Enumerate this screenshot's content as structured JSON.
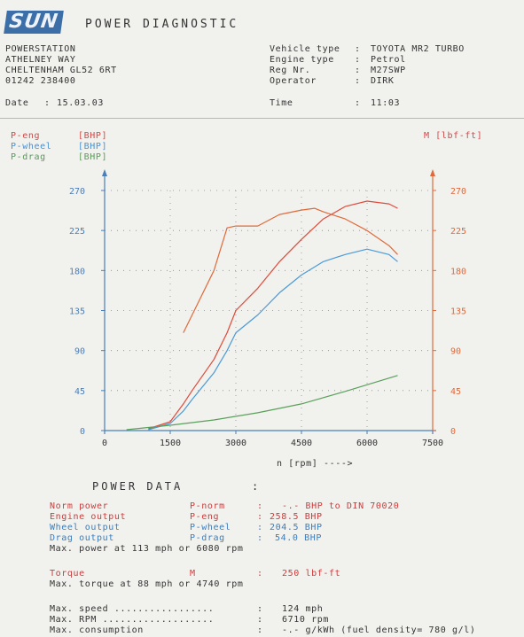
{
  "header": {
    "logo_text": "SUN",
    "title": "POWER DIAGNOSTIC"
  },
  "company": {
    "name": "POWERSTATION",
    "street": "ATHELNEY WAY",
    "city": "CHELTENHAM GL52 6RT",
    "phone": "01242 238400"
  },
  "vehicle": {
    "type_label": "Vehicle type",
    "type_value": "TOYOTA MR2 TURBO",
    "engine_label": "Engine type",
    "engine_value": "Petrol",
    "reg_label": "Reg Nr.",
    "reg_value": "M27SWP",
    "operator_label": "Operator",
    "operator_value": "DIRK"
  },
  "datetime": {
    "date_label": "Date",
    "date_value": "15.03.03",
    "time_label": "Time",
    "time_value": "11:03"
  },
  "legend": {
    "p_eng": "P-eng",
    "p_wheel": "P-wheel",
    "p_drag": "P-drag",
    "unit": "[BHP]",
    "torque": "M [lbf-ft]"
  },
  "chart_data": {
    "type": "line",
    "xlabel": "n [rpm] ---->",
    "xlim": [
      0,
      7500
    ],
    "x_ticks": [
      "0",
      "1500",
      "3000",
      "4500",
      "6000",
      "7500"
    ],
    "ylim_left": [
      0,
      270
    ],
    "ylim_right": [
      0,
      270
    ],
    "y_ticks": [
      "0",
      "45",
      "90",
      "135",
      "180",
      "225",
      "270"
    ],
    "grid": true,
    "colors": {
      "p_eng": "#e04a3a",
      "p_wheel": "#4a9ad8",
      "p_drag": "#5aa05a",
      "torque": "#e06a3a"
    },
    "series": [
      {
        "key": "p_eng",
        "x": [
          1000,
          1500,
          1800,
          2000,
          2500,
          2800,
          3000,
          3500,
          4000,
          4500,
          5000,
          5500,
          6000,
          6500,
          6700
        ],
        "y": [
          2,
          10,
          30,
          45,
          80,
          110,
          135,
          160,
          190,
          215,
          238,
          252,
          258,
          255,
          250
        ]
      },
      {
        "key": "p_wheel",
        "x": [
          1000,
          1500,
          1800,
          2000,
          2500,
          2800,
          3000,
          3500,
          4000,
          4500,
          5000,
          5500,
          6000,
          6500,
          6700
        ],
        "y": [
          1,
          8,
          22,
          35,
          65,
          90,
          110,
          130,
          155,
          175,
          190,
          198,
          204,
          198,
          190
        ]
      },
      {
        "key": "p_drag",
        "x": [
          500,
          1500,
          2500,
          3500,
          4500,
          5500,
          6700
        ],
        "y": [
          1,
          6,
          12,
          20,
          30,
          44,
          62
        ]
      },
      {
        "key": "torque",
        "x": [
          1800,
          2000,
          2500,
          2800,
          3000,
          3500,
          4000,
          4500,
          4800,
          5000,
          5500,
          6000,
          6500,
          6700
        ],
        "y": [
          110,
          130,
          180,
          228,
          230,
          230,
          243,
          248,
          250,
          246,
          238,
          225,
          208,
          198
        ]
      }
    ]
  },
  "power_data": {
    "heading": "POWER DATA",
    "norm_label": "Norm power",
    "norm_sym": "P-norm",
    "norm_value": "-.- BHP to DIN 70020",
    "engine_label": "Engine output",
    "engine_sym": "P-eng",
    "engine_value": "258.5 BHP",
    "wheel_label": "Wheel output",
    "wheel_sym": "P-wheel",
    "wheel_value": "204.5 BHP",
    "drag_label": "Drag output",
    "drag_sym": "P-drag",
    "drag_value": "54.0 BHP",
    "max_power_line": "Max. power at 113 mph or 6080 rpm",
    "torque_label": "Torque",
    "torque_sym": "M",
    "torque_value": "250 lbf-ft",
    "max_torque_line": "Max. torque at 88 mph or 4740 rpm",
    "max_speed_label": "Max. speed .................",
    "max_speed_value": "124 mph",
    "max_rpm_label": "Max. RPM ...................",
    "max_rpm_value": "6710 rpm",
    "max_cons_label": "Max. consumption",
    "max_cons_value": "-.- g/kWh (fuel density= 780 g/l)"
  }
}
